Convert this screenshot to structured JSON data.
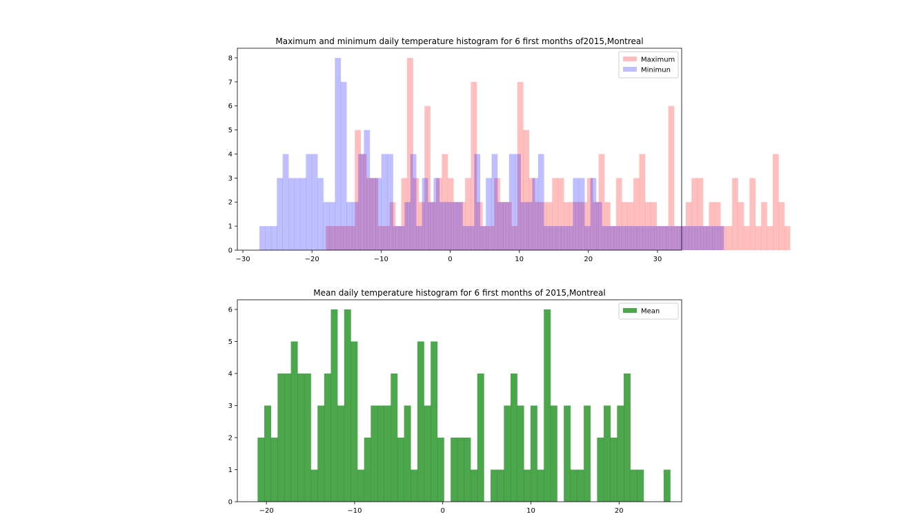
{
  "chart_data": [
    {
      "type": "bar",
      "title": "Maximum and minimum daily temperature histogram for 6 first months of2015,Montreal",
      "xlabel": "",
      "ylabel": "",
      "xlim": [
        -30.8,
        33.5
      ],
      "ylim": [
        0,
        8.4
      ],
      "xticks": [
        -30,
        -20,
        -10,
        0,
        10,
        20,
        30
      ],
      "yticks": [
        0,
        1,
        2,
        3,
        4,
        5,
        6,
        7,
        8
      ],
      "legend_position": "top-right",
      "bin_width": 0.84,
      "series": [
        {
          "name": "Maximum",
          "color": "#ff0000",
          "alpha": 0.25,
          "bin_start": -18.0,
          "counts": [
            1,
            1,
            1,
            1,
            1,
            5,
            4,
            3,
            3,
            1,
            1,
            2,
            1,
            3,
            8,
            3,
            2,
            6,
            2,
            3,
            4,
            3,
            2,
            2,
            3,
            7,
            2,
            1,
            1,
            3,
            2,
            2,
            1,
            7,
            5,
            3,
            2,
            2,
            2,
            3,
            3,
            2,
            2,
            2,
            2,
            3,
            2,
            4,
            2,
            1,
            3,
            2,
            2,
            3,
            4,
            2,
            2,
            1,
            1,
            6,
            1,
            1,
            2,
            3,
            3,
            1,
            2,
            2,
            1,
            1,
            3,
            2,
            1,
            3,
            1,
            2,
            1,
            4,
            2,
            1
          ]
        },
        {
          "name": "Minimun",
          "color": "#0000ff",
          "alpha": 0.25,
          "bin_start": -27.6,
          "counts": [
            1,
            1,
            1,
            3,
            4,
            3,
            3,
            3,
            4,
            4,
            3,
            2,
            2,
            8,
            7,
            2,
            2,
            4,
            5,
            3,
            3,
            4,
            4,
            1,
            1,
            2,
            4,
            1,
            3,
            2,
            3,
            2,
            2,
            2,
            2,
            1,
            1,
            4,
            1,
            3,
            4,
            2,
            2,
            4,
            4,
            2,
            2,
            3,
            4,
            1,
            1,
            1,
            1,
            1,
            3,
            3,
            1,
            3,
            2,
            1,
            1,
            1,
            1,
            1,
            1,
            1,
            1,
            1,
            1,
            1,
            1,
            1,
            1,
            1,
            1,
            1,
            1,
            1,
            1,
            1
          ]
        }
      ]
    },
    {
      "type": "bar",
      "title": "Mean daily temperature histogram for 6 first months of 2015,Montreal",
      "xlabel": "",
      "ylabel": "",
      "xlim": [
        -23.3,
        27.1
      ],
      "ylim": [
        0,
        6.3
      ],
      "xticks": [
        -20,
        -10,
        0,
        10,
        20
      ],
      "yticks": [
        0,
        1,
        2,
        3,
        4,
        5,
        6
      ],
      "legend_position": "top-right",
      "bin_width": 0.755,
      "series": [
        {
          "name": "Mean",
          "color": "#008000",
          "alpha": 0.7,
          "bin_start": -21.0,
          "counts": [
            2,
            3,
            2,
            4,
            4,
            5,
            4,
            4,
            1,
            3,
            4,
            6,
            3,
            6,
            5,
            1,
            2,
            3,
            3,
            3,
            4,
            2,
            3,
            1,
            5,
            3,
            5,
            2,
            0,
            2,
            2,
            2,
            1,
            4,
            0,
            1,
            1,
            3,
            4,
            3,
            1,
            3,
            1,
            6,
            3,
            0,
            3,
            1,
            1,
            3,
            0,
            2,
            3,
            2,
            3,
            4,
            1,
            1,
            0,
            0,
            0,
            1
          ]
        }
      ]
    }
  ]
}
